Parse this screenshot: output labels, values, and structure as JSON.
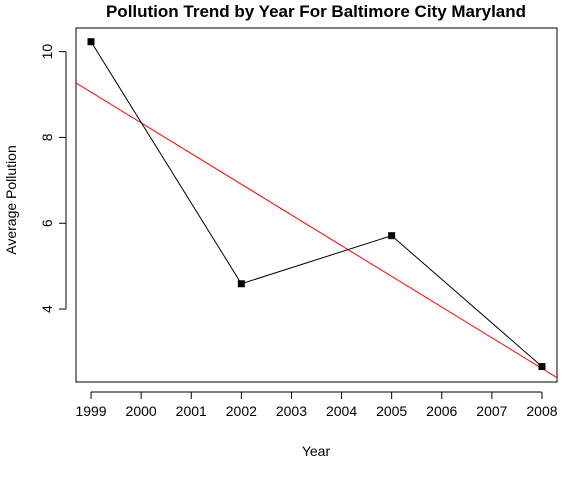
{
  "chart_data": {
    "type": "line",
    "title": "Pollution Trend by Year For Baltimore City Maryland",
    "xlabel": "Year",
    "ylabel": "Average Pollution",
    "x_ticks": [
      1999,
      2000,
      2001,
      2002,
      2003,
      2004,
      2005,
      2006,
      2007,
      2008
    ],
    "x_tick_labels": [
      "1999",
      "2000",
      "2001",
      "2002",
      "2003",
      "2004",
      "2005",
      "2006",
      "2007",
      "2008"
    ],
    "y_ticks": [
      4,
      6,
      8,
      10
    ],
    "y_tick_labels": [
      "4",
      "6",
      "8",
      "10"
    ],
    "xlim": [
      1998.7,
      2008.3
    ],
    "ylim": [
      2.3,
      10.55
    ],
    "series": [
      {
        "points": [
          {
            "x": 1999,
            "y": 10.23
          },
          {
            "x": 2002,
            "y": 4.59
          },
          {
            "x": 2005,
            "y": 5.71
          },
          {
            "x": 2008,
            "y": 2.66
          }
        ],
        "color": "#000000",
        "marker": "square"
      }
    ],
    "trend_line": {
      "points": [
        {
          "x": 1998.7,
          "y": 9.27
        },
        {
          "x": 2008.3,
          "y": 2.4
        }
      ],
      "color": "#ff0000"
    },
    "grid": false,
    "legend": "none"
  }
}
